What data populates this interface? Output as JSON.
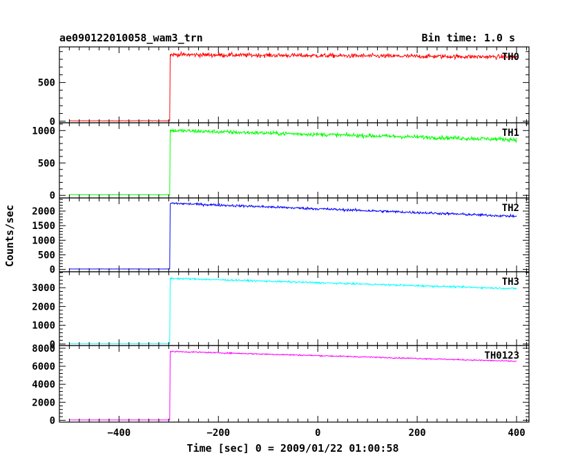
{
  "title": "ae090122010058_wam3_trn",
  "bin_time": "Bin time: 1.0 s",
  "xlabel": "Time [sec] 0 = 2009/01/22 01:00:58",
  "ylabel": "Counts/sec",
  "chart_data": {
    "type": "line",
    "title": "ae090122010058_wam3_trn",
    "xlabel": "Time [sec] 0 = 2009/01/22 01:00:58",
    "ylabel": "Counts/sec",
    "xlim": [
      -520,
      425
    ],
    "x_ticks": [
      -400,
      -200,
      0,
      200,
      400
    ],
    "grid": false,
    "series": [
      {
        "name": "TH0",
        "color": "#ff0000",
        "ylim": [
          -20,
          960
        ],
        "y_ticks": [
          0,
          500
        ],
        "x_start": -500,
        "x_end": 400,
        "step_time": -297,
        "baseline": 5,
        "start_level": 860,
        "end_level": 830,
        "noise": 40,
        "y_tick_labels": [
          "0",
          "500"
        ]
      },
      {
        "name": "TH1",
        "color": "#00ff00",
        "ylim": [
          -40,
          1120
        ],
        "y_ticks": [
          0,
          500,
          1000
        ],
        "x_start": -500,
        "x_end": 400,
        "step_time": -297,
        "baseline": 10,
        "start_level": 1000,
        "end_level": 860,
        "noise": 45,
        "y_tick_labels": [
          "0",
          "500",
          "1000"
        ]
      },
      {
        "name": "TH2",
        "color": "#0000ff",
        "ylim": [
          -80,
          2450
        ],
        "y_ticks": [
          0,
          500,
          1000,
          1500,
          2000
        ],
        "x_start": -500,
        "x_end": 400,
        "step_time": -297,
        "baseline": 15,
        "start_level": 2270,
        "end_level": 1820,
        "noise": 60,
        "y_tick_labels": [
          "0",
          "500",
          "1000",
          "1500",
          "2000"
        ]
      },
      {
        "name": "TH3",
        "color": "#00ffff",
        "ylim": [
          -80,
          3850
        ],
        "y_ticks": [
          0,
          1000,
          2000,
          3000
        ],
        "x_start": -500,
        "x_end": 400,
        "step_time": -297,
        "baseline": 20,
        "start_level": 3500,
        "end_level": 2950,
        "noise": 70,
        "y_tick_labels": [
          "0",
          "1000",
          "2000",
          "3000"
        ]
      },
      {
        "name": "TH0123",
        "color": "#ff00ff",
        "ylim": [
          -200,
          8300
        ],
        "y_ticks": [
          0,
          2000,
          4000,
          6000,
          8000
        ],
        "x_start": -500,
        "x_end": 400,
        "step_time": -297,
        "baseline": 40,
        "start_level": 7650,
        "end_level": 6550,
        "noise": 100,
        "y_tick_labels": [
          "0",
          "2000",
          "4000",
          "6000",
          "8000"
        ]
      }
    ]
  }
}
